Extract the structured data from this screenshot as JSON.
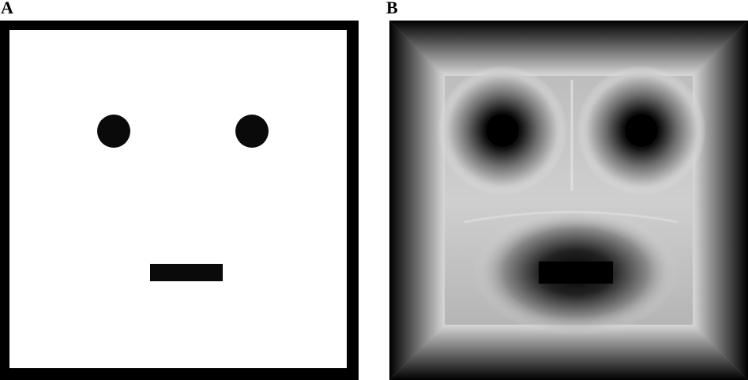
{
  "panels": {
    "a": {
      "label": "A"
    },
    "b": {
      "label": "B"
    }
  },
  "colors": {
    "foreground": "#0a0a0a",
    "background": "#ffffff",
    "frame": "#000000"
  }
}
